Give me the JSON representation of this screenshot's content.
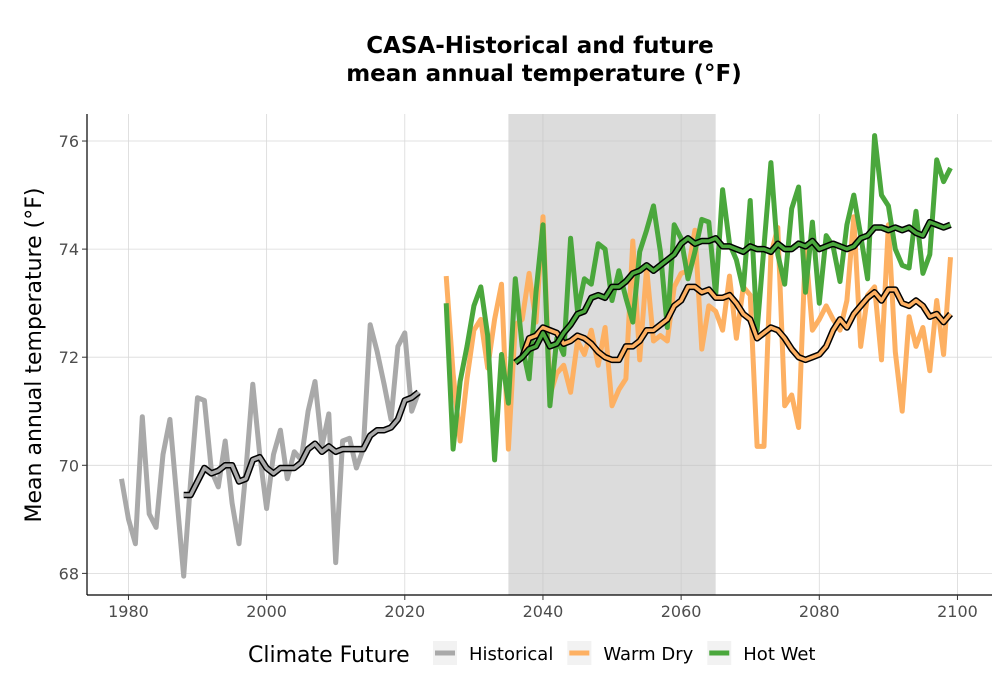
{
  "chart_data": {
    "type": "line",
    "title_line1": "CASA-Historical and future",
    "title_line2": "mean annual temperature (°F)",
    "xlabel": "",
    "ylabel": "Mean annual temperature (°F)",
    "xlim": [
      1974,
      2105
    ],
    "ylim": [
      67.6,
      76.5
    ],
    "x_ticks": [
      1980,
      2000,
      2020,
      2040,
      2060,
      2080,
      2100
    ],
    "y_ticks": [
      68,
      70,
      72,
      74,
      76
    ],
    "grid": true,
    "shaded_period": [
      2035,
      2065
    ],
    "legend": {
      "title": "Climate Future",
      "position": "bottom",
      "items": [
        {
          "label": "Historical",
          "color": "#a9a9a9"
        },
        {
          "label": "Warm Dry",
          "color": "#fdb062"
        },
        {
          "label": "Hot Wet",
          "color": "#4aa73c"
        }
      ]
    },
    "series": [
      {
        "name": "Historical",
        "color": "#a9a9a9",
        "x": [
          1979,
          1980,
          1981,
          1982,
          1983,
          1984,
          1985,
          1986,
          1987,
          1988,
          1989,
          1990,
          1991,
          1992,
          1993,
          1994,
          1995,
          1996,
          1997,
          1998,
          1999,
          2000,
          2001,
          2002,
          2003,
          2004,
          2005,
          2006,
          2007,
          2008,
          2009,
          2010,
          2011,
          2012,
          2013,
          2014,
          2015,
          2016,
          2017,
          2018,
          2019,
          2020,
          2021,
          2022
        ],
        "values": [
          69.75,
          69.0,
          68.55,
          70.9,
          69.1,
          68.85,
          70.2,
          70.85,
          69.4,
          67.95,
          69.7,
          71.25,
          71.2,
          69.9,
          69.6,
          70.45,
          69.3,
          68.55,
          69.9,
          71.5,
          70.2,
          69.2,
          70.2,
          70.65,
          69.75,
          70.25,
          70.1,
          71.0,
          71.55,
          70.35,
          70.95,
          68.2,
          70.45,
          70.5,
          69.95,
          70.3,
          72.6,
          72.1,
          71.5,
          70.85,
          72.2,
          72.45,
          71.0,
          71.35
        ]
      },
      {
        "name": "Historical (smoothed)",
        "color": "#000000",
        "smoothed": true,
        "x": [
          1988,
          1989,
          1990,
          1991,
          1992,
          1993,
          1994,
          1995,
          1996,
          1997,
          1998,
          1999,
          2000,
          2001,
          2002,
          2003,
          2004,
          2005,
          2006,
          2007,
          2008,
          2009,
          2010,
          2011,
          2012,
          2013,
          2014,
          2015,
          2016,
          2017,
          2018,
          2019,
          2020,
          2021,
          2022
        ],
        "values": [
          69.45,
          69.45,
          69.7,
          69.95,
          69.85,
          69.9,
          70.0,
          70.0,
          69.7,
          69.75,
          70.1,
          70.15,
          69.95,
          69.85,
          69.95,
          69.95,
          69.95,
          70.05,
          70.3,
          70.4,
          70.25,
          70.35,
          70.25,
          70.3,
          70.3,
          70.3,
          70.3,
          70.55,
          70.65,
          70.65,
          70.7,
          70.85,
          71.2,
          71.25,
          71.35
        ]
      },
      {
        "name": "Warm Dry",
        "color": "#fdb062",
        "x": [
          2026,
          2027,
          2028,
          2029,
          2030,
          2031,
          2032,
          2033,
          2034,
          2035,
          2036,
          2037,
          2038,
          2039,
          2040,
          2041,
          2042,
          2043,
          2044,
          2045,
          2046,
          2047,
          2048,
          2049,
          2050,
          2051,
          2052,
          2053,
          2054,
          2055,
          2056,
          2057,
          2058,
          2059,
          2060,
          2061,
          2062,
          2063,
          2064,
          2065,
          2066,
          2067,
          2068,
          2069,
          2070,
          2071,
          2072,
          2073,
          2074,
          2075,
          2076,
          2077,
          2078,
          2079,
          2080,
          2081,
          2082,
          2083,
          2084,
          2085,
          2086,
          2087,
          2088,
          2089,
          2090,
          2091,
          2092,
          2093,
          2094,
          2095,
          2096,
          2097,
          2098,
          2099
        ],
        "values": [
          73.5,
          71.7,
          70.45,
          71.6,
          72.5,
          72.7,
          71.8,
          72.7,
          73.35,
          70.3,
          72.6,
          72.7,
          73.55,
          72.65,
          74.6,
          71.3,
          71.7,
          71.85,
          71.35,
          72.3,
          72.05,
          72.5,
          71.85,
          72.55,
          71.1,
          71.4,
          71.6,
          74.15,
          71.95,
          73.65,
          72.3,
          72.4,
          72.3,
          73.3,
          73.55,
          73.6,
          74.35,
          72.15,
          72.95,
          72.85,
          72.5,
          73.5,
          72.35,
          73.3,
          73.15,
          70.35,
          70.35,
          73.9,
          74.4,
          71.1,
          71.3,
          70.7,
          74.05,
          72.5,
          72.7,
          72.95,
          72.7,
          72.5,
          73.05,
          74.6,
          72.2,
          73.15,
          73.3,
          71.95,
          74.45,
          72.1,
          71.0,
          72.75,
          72.2,
          72.55,
          71.75,
          73.05,
          72.05,
          73.85
        ]
      },
      {
        "name": "Warm Dry (smoothed)",
        "color": "#000000",
        "smoothed": true,
        "x": [
          2036,
          2037,
          2038,
          2039,
          2040,
          2041,
          2042,
          2043,
          2044,
          2045,
          2046,
          2047,
          2048,
          2049,
          2050,
          2051,
          2052,
          2053,
          2054,
          2055,
          2056,
          2057,
          2058,
          2059,
          2060,
          2061,
          2062,
          2063,
          2064,
          2065,
          2066,
          2067,
          2068,
          2069,
          2070,
          2071,
          2072,
          2073,
          2074,
          2075,
          2076,
          2077,
          2078,
          2079,
          2080,
          2081,
          2082,
          2083,
          2084,
          2085,
          2086,
          2087,
          2088,
          2089,
          2090,
          2091,
          2092,
          2093,
          2094,
          2095,
          2096,
          2097,
          2098,
          2099
        ],
        "values": [
          71.9,
          72.0,
          72.35,
          72.4,
          72.55,
          72.5,
          72.45,
          72.25,
          72.3,
          72.4,
          72.35,
          72.25,
          72.1,
          72.0,
          71.95,
          71.95,
          72.2,
          72.2,
          72.3,
          72.5,
          72.5,
          72.6,
          72.7,
          72.95,
          73.05,
          73.3,
          73.3,
          73.2,
          73.25,
          73.1,
          73.1,
          73.15,
          73.0,
          72.8,
          72.7,
          72.35,
          72.45,
          72.55,
          72.5,
          72.35,
          72.15,
          72.0,
          71.95,
          72.0,
          72.05,
          72.2,
          72.5,
          72.7,
          72.55,
          72.8,
          72.95,
          73.1,
          73.2,
          73.05,
          73.25,
          73.25,
          73.0,
          72.95,
          73.05,
          72.95,
          72.75,
          72.8,
          72.65,
          72.8
        ]
      },
      {
        "name": "Hot Wet",
        "color": "#4aa73c",
        "x": [
          2026,
          2027,
          2028,
          2029,
          2030,
          2031,
          2032,
          2033,
          2034,
          2035,
          2036,
          2037,
          2038,
          2039,
          2040,
          2041,
          2042,
          2043,
          2044,
          2045,
          2046,
          2047,
          2048,
          2049,
          2050,
          2051,
          2052,
          2053,
          2054,
          2055,
          2056,
          2057,
          2058,
          2059,
          2060,
          2061,
          2062,
          2063,
          2064,
          2065,
          2066,
          2067,
          2068,
          2069,
          2070,
          2071,
          2072,
          2073,
          2074,
          2075,
          2076,
          2077,
          2078,
          2079,
          2080,
          2081,
          2082,
          2083,
          2084,
          2085,
          2086,
          2087,
          2088,
          2089,
          2090,
          2091,
          2092,
          2093,
          2094,
          2095,
          2096,
          2097,
          2098,
          2099
        ],
        "values": [
          73.0,
          70.3,
          71.55,
          72.2,
          72.95,
          73.3,
          72.4,
          70.1,
          72.05,
          71.15,
          73.45,
          72.2,
          71.6,
          73.2,
          74.45,
          71.1,
          72.35,
          72.05,
          74.2,
          72.85,
          73.45,
          73.35,
          74.1,
          74.0,
          73.05,
          73.6,
          73.1,
          72.65,
          73.95,
          74.35,
          74.8,
          73.95,
          72.55,
          74.45,
          74.2,
          73.45,
          73.95,
          74.55,
          74.5,
          73.15,
          75.1,
          74.1,
          73.8,
          73.25,
          74.9,
          72.5,
          74.05,
          75.6,
          73.9,
          73.35,
          74.75,
          75.15,
          73.2,
          74.5,
          73.0,
          74.25,
          74.05,
          73.4,
          74.45,
          75.0,
          74.25,
          73.45,
          76.1,
          75.0,
          74.8,
          74.0,
          73.7,
          73.65,
          74.7,
          73.55,
          73.9,
          75.65,
          75.25,
          75.5
        ]
      },
      {
        "name": "Hot Wet (smoothed)",
        "color": "#000000",
        "smoothed": true,
        "x": [
          2036,
          2037,
          2038,
          2039,
          2040,
          2041,
          2042,
          2043,
          2044,
          2045,
          2046,
          2047,
          2048,
          2049,
          2050,
          2051,
          2052,
          2053,
          2054,
          2055,
          2056,
          2057,
          2058,
          2059,
          2060,
          2061,
          2062,
          2063,
          2064,
          2065,
          2066,
          2067,
          2068,
          2069,
          2070,
          2071,
          2072,
          2073,
          2074,
          2075,
          2076,
          2077,
          2078,
          2079,
          2080,
          2081,
          2082,
          2083,
          2084,
          2085,
          2086,
          2087,
          2088,
          2089,
          2090,
          2091,
          2092,
          2093,
          2094,
          2095,
          2096,
          2097,
          2098,
          2099
        ],
        "values": [
          71.9,
          72.0,
          72.15,
          72.2,
          72.45,
          72.2,
          72.25,
          72.45,
          72.6,
          72.8,
          72.85,
          73.1,
          73.15,
          73.1,
          73.3,
          73.3,
          73.4,
          73.55,
          73.6,
          73.7,
          73.6,
          73.7,
          73.8,
          73.9,
          74.1,
          74.2,
          74.1,
          74.15,
          74.15,
          74.2,
          74.05,
          74.05,
          74.0,
          73.95,
          74.05,
          74.0,
          74.0,
          73.95,
          74.1,
          74.0,
          74.0,
          74.1,
          74.05,
          74.15,
          74.0,
          74.05,
          74.1,
          74.05,
          74.0,
          74.05,
          74.2,
          74.25,
          74.4,
          74.4,
          74.35,
          74.4,
          74.35,
          74.4,
          74.3,
          74.25,
          74.5,
          74.45,
          74.4,
          74.45
        ]
      }
    ]
  }
}
